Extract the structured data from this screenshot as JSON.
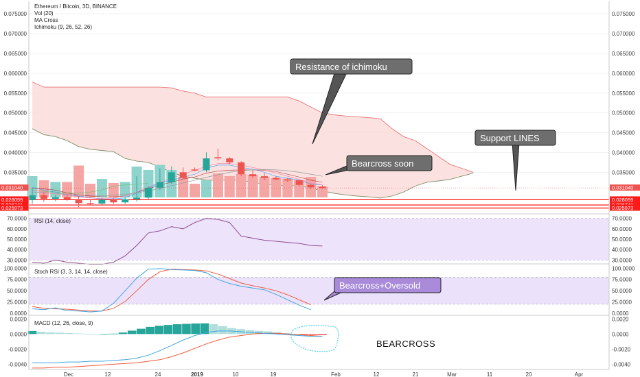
{
  "chart_data": {
    "type": "candlestick",
    "legend": {
      "symbol": "Ethereum / Bitcoin, 3D, BINANCE",
      "indicators": [
        "Vol (20)",
        "MA Cross",
        "Ichimoku (9, 26, 52, 26)"
      ]
    },
    "x_ticks": [
      "Dec",
      "12",
      "24",
      "2019",
      "10",
      "19",
      "Feb",
      "12",
      "21",
      "Mar",
      "11",
      "20",
      "Apr"
    ],
    "price_axis": {
      "ticks": [
        "0.075000",
        "0.070000",
        "0.065000",
        "0.060000",
        "0.055000",
        "0.050000",
        "0.045000",
        "0.040000",
        "0.035000"
      ],
      "tick_values": [
        0.075,
        0.07,
        0.065,
        0.06,
        0.055,
        0.05,
        0.045,
        0.04,
        0.035
      ],
      "range": [
        0.0245,
        0.0778
      ]
    },
    "price_tags_left": [
      {
        "label": "0.031040",
        "value": 0.03104
      },
      {
        "label": "0.028059",
        "value": 0.028059
      },
      {
        "label": "0.026741",
        "value": 0.026741
      },
      {
        "label": "0.025973",
        "value": 0.025973
      }
    ],
    "price_tags_right": [
      {
        "label": "0.031040",
        "value": 0.03104
      },
      {
        "label": "0.028059",
        "value": 0.028059
      },
      {
        "label": "0.026741",
        "value": 0.026741
      },
      {
        "label": "0.025973",
        "value": 0.025973
      }
    ],
    "support_lines": [
      0.028059,
      0.026741,
      0.025973
    ],
    "candles": [
      {
        "t": 0,
        "o": 0.028,
        "h": 0.031,
        "l": 0.027,
        "c": 0.0292
      },
      {
        "t": 1,
        "o": 0.0292,
        "h": 0.03,
        "l": 0.0275,
        "c": 0.0283
      },
      {
        "t": 2,
        "o": 0.0283,
        "h": 0.0292,
        "l": 0.0277,
        "c": 0.0287
      },
      {
        "t": 3,
        "o": 0.0287,
        "h": 0.0295,
        "l": 0.0278,
        "c": 0.028
      },
      {
        "t": 4,
        "o": 0.028,
        "h": 0.029,
        "l": 0.0262,
        "c": 0.0272
      },
      {
        "t": 5,
        "o": 0.0272,
        "h": 0.028,
        "l": 0.0266,
        "c": 0.0271
      },
      {
        "t": 6,
        "o": 0.0271,
        "h": 0.0285,
        "l": 0.0268,
        "c": 0.028
      },
      {
        "t": 7,
        "o": 0.028,
        "h": 0.0285,
        "l": 0.027,
        "c": 0.0274
      },
      {
        "t": 8,
        "o": 0.0274,
        "h": 0.0286,
        "l": 0.027,
        "c": 0.0282
      },
      {
        "t": 9,
        "o": 0.0282,
        "h": 0.034,
        "l": 0.0276,
        "c": 0.0286
      },
      {
        "t": 10,
        "o": 0.0286,
        "h": 0.0315,
        "l": 0.028,
        "c": 0.0311
      },
      {
        "t": 11,
        "o": 0.0311,
        "h": 0.036,
        "l": 0.0305,
        "c": 0.0325
      },
      {
        "t": 12,
        "o": 0.0325,
        "h": 0.0365,
        "l": 0.032,
        "c": 0.035
      },
      {
        "t": 13,
        "o": 0.035,
        "h": 0.0362,
        "l": 0.0332,
        "c": 0.0336
      },
      {
        "t": 14,
        "o": 0.0357,
        "h": 0.0362,
        "l": 0.0352,
        "c": 0.0355
      },
      {
        "t": 15,
        "o": 0.0355,
        "h": 0.04,
        "l": 0.035,
        "c": 0.0385
      },
      {
        "t": 16,
        "o": 0.0388,
        "h": 0.041,
        "l": 0.038,
        "c": 0.0385
      },
      {
        "t": 17,
        "o": 0.0385,
        "h": 0.0388,
        "l": 0.037,
        "c": 0.0375
      },
      {
        "t": 18,
        "o": 0.0375,
        "h": 0.0378,
        "l": 0.034,
        "c": 0.0345
      },
      {
        "t": 19,
        "o": 0.0345,
        "h": 0.0355,
        "l": 0.0335,
        "c": 0.034
      },
      {
        "t": 20,
        "o": 0.034,
        "h": 0.0348,
        "l": 0.033,
        "c": 0.0336
      },
      {
        "t": 21,
        "o": 0.0336,
        "h": 0.034,
        "l": 0.033,
        "c": 0.0332
      },
      {
        "t": 22,
        "o": 0.0332,
        "h": 0.0336,
        "l": 0.0326,
        "c": 0.033
      },
      {
        "t": 23,
        "o": 0.033,
        "h": 0.0331,
        "l": 0.0315,
        "c": 0.0318
      },
      {
        "t": 24,
        "o": 0.0318,
        "h": 0.0322,
        "l": 0.0308,
        "c": 0.0312
      },
      {
        "t": 25,
        "o": 0.0314,
        "h": 0.0317,
        "l": 0.0308,
        "c": 0.031
      }
    ],
    "volume": [
      0.62,
      0.5,
      0.45,
      0.45,
      0.93,
      0.4,
      0.54,
      0.42,
      0.45,
      0.9,
      0.8,
      0.95,
      0.8,
      0.6,
      0.4,
      0.5,
      0.7,
      0.62,
      0.68,
      0.66,
      0.6,
      0.56,
      0.55,
      0.5,
      0.6,
      0.32
    ],
    "ichimoku": {
      "span_a": [
        0.0578,
        0.0565,
        0.0565,
        0.0565,
        0.0565,
        0.0565,
        0.0565,
        0.0565,
        0.0565,
        0.0565,
        0.0565,
        0.0565,
        0.0563,
        0.0555,
        0.055,
        0.054,
        0.054,
        0.054,
        0.054,
        0.054,
        0.054,
        0.054,
        0.054,
        0.053,
        0.0515,
        0.05,
        0.0495,
        0.0492,
        0.049,
        0.0488,
        0.0485,
        0.046,
        0.044,
        0.043,
        0.041,
        0.039,
        0.037,
        0.036,
        0.035
      ],
      "span_b": [
        0.046,
        0.0445,
        0.044,
        0.043,
        0.0415,
        0.0408,
        0.0405,
        0.0402,
        0.0385,
        0.0378,
        0.0375,
        0.0363,
        0.035,
        0.034,
        0.0335,
        0.033,
        0.033,
        0.033,
        0.033,
        0.0325,
        0.032,
        0.0318,
        0.0316,
        0.0316,
        0.031,
        0.0303,
        0.0297,
        0.0293,
        0.029,
        0.0288,
        0.0285,
        0.029,
        0.03,
        0.0315,
        0.0325,
        0.0328,
        0.0332,
        0.034,
        0.0348
      ],
      "conversion": [
        0.0312,
        0.0305,
        0.03,
        0.0292,
        0.029,
        0.0286,
        0.0282,
        0.0283,
        0.0285,
        0.0298,
        0.031,
        0.0324,
        0.033,
        0.0338,
        0.0345,
        0.036,
        0.0368,
        0.0368,
        0.0362,
        0.0358,
        0.035,
        0.034,
        0.0335,
        0.033,
        0.032,
        0.0318
      ],
      "base": [
        0.031,
        0.0308,
        0.0305,
        0.0298,
        0.0293,
        0.029,
        0.0288,
        0.0288,
        0.029,
        0.03,
        0.0308,
        0.0318,
        0.0325,
        0.0333,
        0.0338,
        0.0348,
        0.0353,
        0.0355,
        0.0356,
        0.0356,
        0.0355,
        0.0352,
        0.0345,
        0.0338,
        0.033,
        0.0325
      ],
      "lagging": [
        0.0305,
        0.0302,
        0.03,
        0.0298,
        0.0298,
        0.03,
        0.0305,
        0.0315,
        0.0318,
        0.032,
        0.0322
      ]
    },
    "ma_cross": {
      "fast": [
        0.0305,
        0.03,
        0.0295,
        0.0292,
        0.0288,
        0.0285,
        0.0284,
        0.0285,
        0.029,
        0.03,
        0.0312,
        0.0325,
        0.0335,
        0.0345,
        0.0355,
        0.0365,
        0.0372,
        0.0372,
        0.0368,
        0.0362,
        0.0356,
        0.0348,
        0.034,
        0.0332,
        0.0324,
        0.0318
      ],
      "slow": [
        0.03,
        0.0299,
        0.0297,
        0.0295,
        0.0293,
        0.0292,
        0.0291,
        0.0292,
        0.0294,
        0.0298,
        0.0303,
        0.0309,
        0.0316,
        0.0323,
        0.033,
        0.0337,
        0.0344,
        0.035,
        0.0354,
        0.0356,
        0.0357,
        0.0356,
        0.0354,
        0.035,
        0.0345,
        0.034
      ]
    },
    "rsi": {
      "legend": "RSI (14, close)",
      "ticks": [
        "70.0000",
        "60.0000",
        "50.0000",
        "40.0000",
        "30.0000"
      ],
      "tick_values": [
        70,
        60,
        50,
        40,
        30
      ],
      "range": [
        27,
        73
      ],
      "band": [
        30,
        70
      ],
      "values": [
        28,
        27,
        30,
        28,
        27,
        26,
        26,
        28,
        34,
        44,
        56,
        58,
        62,
        60,
        66,
        70,
        69,
        66,
        53,
        51,
        49,
        48,
        47,
        46,
        44,
        43.5
      ]
    },
    "stoch_rsi": {
      "legend": "Stoch RSI (3, 3, 14, 14, close)",
      "ticks": [
        "100.0000",
        "75.0000",
        "50.0000",
        "25.0000",
        "0.0000"
      ],
      "tick_values": [
        100,
        75,
        50,
        25,
        0
      ],
      "range": [
        -3,
        105
      ],
      "band": [
        20,
        80
      ],
      "k": [
        10,
        8,
        12,
        6,
        5,
        3,
        5,
        22,
        50,
        78,
        98,
        99,
        97,
        96,
        95,
        90,
        75,
        66,
        60,
        56,
        52,
        42,
        30,
        18,
        8
      ],
      "d": [
        15,
        11,
        10,
        9,
        7,
        5,
        5,
        11,
        26,
        50,
        75,
        92,
        98,
        97,
        96,
        94,
        87,
        77,
        67,
        61,
        56,
        50,
        41,
        30,
        19
      ]
    },
    "macd": {
      "legend": "MACD (12, 26, close, 9)",
      "ticks": [
        "0.0020",
        "0.0000",
        "-0.0020",
        "-0.0040"
      ],
      "tick_values": [
        0.002,
        0.0,
        -0.002,
        -0.004
      ],
      "range": [
        -0.0046,
        0.0023
      ],
      "histogram": [
        0.0004,
        0.0003,
        0.00022,
        0.00018,
        0.00012,
        8e-05,
        4e-05,
        2e-05,
        2e-05,
        5e-05,
        0.0002,
        0.00045,
        0.0007,
        0.00095,
        0.0011,
        0.0012,
        0.0013,
        0.00135,
        0.0014,
        0.00142,
        0.0013,
        0.00105,
        0.0008,
        0.00065,
        0.00052,
        0.00042,
        0.00035,
        0.00025,
        0.00012,
        2e-05,
        -0.0001,
        -0.00012,
        -0.00014
      ],
      "macd_line": [
        -0.0038,
        -0.0038,
        -0.0038,
        -0.0037,
        -0.0037,
        -0.0036,
        -0.0036,
        -0.0035,
        -0.0034,
        -0.0032,
        -0.0028,
        -0.0022,
        -0.0015,
        -0.0008,
        -0.0002,
        0.0002,
        0.0004,
        0.0004,
        0.0003,
        0.0002,
        0.0001,
        0.0,
        -0.0001,
        -0.0002,
        -0.0003,
        -0.0003
      ],
      "signal_line": [
        -0.0045,
        -0.0045,
        -0.0044,
        -0.0044,
        -0.0043,
        -0.0042,
        -0.0041,
        -0.004,
        -0.0039,
        -0.0038,
        -0.0036,
        -0.0034,
        -0.003,
        -0.0025,
        -0.0019,
        -0.0013,
        -0.0008,
        -0.0004,
        -0.0002,
        0.0,
        0.0001,
        0.0001,
        0.0,
        -0.0001,
        -0.0002,
        -0.0003
      ]
    }
  },
  "annotations": {
    "resistance": "Resistance of ichimoku",
    "support": "Support LINES",
    "bearcross_soon": "Bearcross soon",
    "bearcross_oversold": "Bearcross+Oversold",
    "bearcross": "BEARCROSS"
  },
  "colors": {
    "up": "#26a69a",
    "down": "#ef5350",
    "vol_up": "#8fd3cd",
    "vol_down": "#f4a6a4",
    "cloud": "#fcdcdc",
    "span_a": "#e57373",
    "span_b": "#7c8f66",
    "support": "#ff0000",
    "conversion": "#0496ff",
    "base": "#991515",
    "lagging": "#66bb6a",
    "rsi_line": "#8e4c8a",
    "band": "#e8dcfa",
    "k_line": "#3fa5df",
    "d_line": "#ef5a3c",
    "macd_line": "#3fa5df",
    "signal_line": "#ef5a3c",
    "hist_up": "#26a69a",
    "hist_down": "#ef5350",
    "callout_bg": "#6e6e6e",
    "oversold_bg": "#a98bd9"
  }
}
